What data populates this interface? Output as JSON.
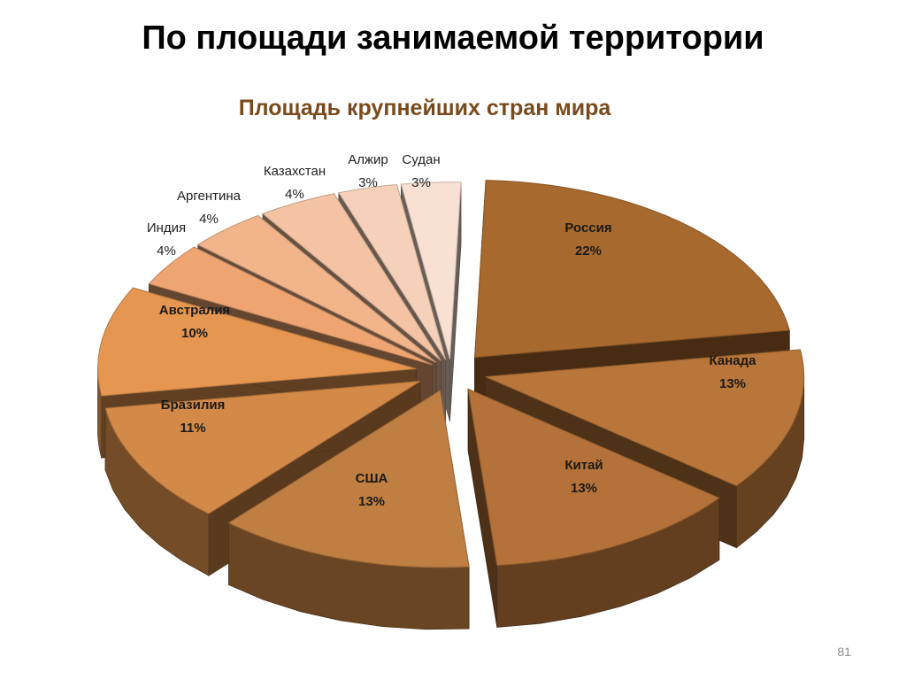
{
  "slide": {
    "title": "По площади занимаемой территории",
    "page_number": "81"
  },
  "chart_data": {
    "type": "pie",
    "style": "3d-exploded",
    "title": "Площадь крупнейших стран мира",
    "label_format": "{name} {pct}%",
    "slices": [
      {
        "name": "Россия",
        "value": 22,
        "color": "#a8692e"
      },
      {
        "name": "Канада",
        "value": 13,
        "color": "#b8763a"
      },
      {
        "name": "Китай",
        "value": 13,
        "color": "#b4723a"
      },
      {
        "name": "США",
        "value": 13,
        "color": "#bf7e42"
      },
      {
        "name": "Бразилия",
        "value": 11,
        "color": "#d38a48"
      },
      {
        "name": "Австралия",
        "value": 10,
        "color": "#e59650"
      },
      {
        "name": "Индия",
        "value": 4,
        "color": "#efa572"
      },
      {
        "name": "Аргентина",
        "value": 4,
        "color": "#f2b48a"
      },
      {
        "name": "Казахстан",
        "value": 4,
        "color": "#f4c3a3"
      },
      {
        "name": "Алжир",
        "value": 3,
        "color": "#f6d1ba"
      },
      {
        "name": "Судан",
        "value": 3,
        "color": "#f8e0d2"
      }
    ]
  }
}
